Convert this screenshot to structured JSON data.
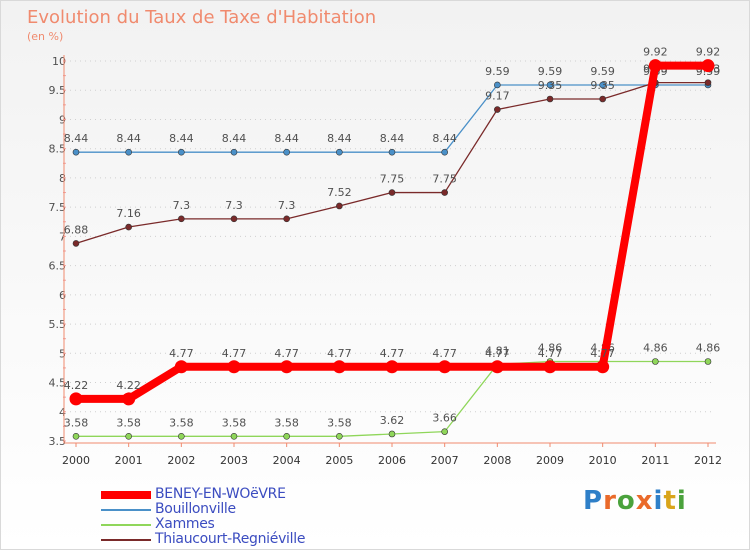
{
  "title": "Evolution du Taux de Taxe d'Habitation",
  "unit": "(en %)",
  "logo": "Proxiti",
  "colors": {
    "title": "#f08a6e",
    "axis": "#f08a6e",
    "grid": "#d0d0d0",
    "label": "#505050"
  },
  "chart_data": {
    "type": "line",
    "title": "Evolution du Taux de Taxe d'Habitation",
    "subtitle": "(en %)",
    "xlabel": "",
    "ylabel": "",
    "x": [
      2000,
      2001,
      2002,
      2003,
      2004,
      2005,
      2006,
      2007,
      2008,
      2009,
      2010,
      2011,
      2012
    ],
    "ylim": [
      3.5,
      10
    ],
    "yticks": [
      3.5,
      4,
      4.5,
      5,
      5.5,
      6,
      6.5,
      7,
      7.5,
      8,
      8.5,
      9,
      9.5,
      10
    ],
    "grid": "horizontal",
    "legend_position": "bottom-left",
    "series": [
      {
        "name": "BENEY-EN-WOëVRE",
        "color": "#ff0000",
        "highlight": true,
        "values": [
          4.22,
          4.22,
          4.77,
          4.77,
          4.77,
          4.77,
          4.77,
          4.77,
          4.77,
          4.77,
          4.77,
          9.92,
          9.92
        ]
      },
      {
        "name": "Bouillonville",
        "color": "#4a90c8",
        "highlight": false,
        "values": [
          8.44,
          8.44,
          8.44,
          8.44,
          8.44,
          8.44,
          8.44,
          8.44,
          9.59,
          9.59,
          9.59,
          9.59,
          9.59
        ]
      },
      {
        "name": "Xammes",
        "color": "#8fd65a",
        "highlight": false,
        "values": [
          3.58,
          3.58,
          3.58,
          3.58,
          3.58,
          3.58,
          3.62,
          3.66,
          4.81,
          4.86,
          4.86,
          4.86,
          4.86
        ]
      },
      {
        "name": "Thiaucourt-Regniéville",
        "color": "#7a2a2a",
        "highlight": false,
        "values": [
          6.88,
          7.16,
          7.3,
          7.3,
          7.3,
          7.52,
          7.75,
          7.75,
          9.17,
          9.35,
          9.35,
          9.63,
          9.63
        ]
      }
    ]
  }
}
